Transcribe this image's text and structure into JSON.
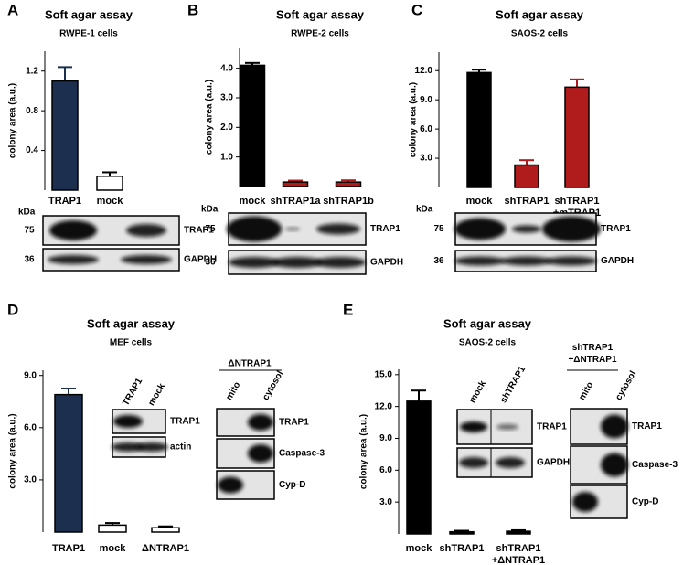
{
  "chart_data": [
    {
      "type": "bar",
      "panel": "A",
      "title": "Soft agar assay",
      "subtitle": "RWPE-1 cells",
      "ylabel": "colony area (a.u.)",
      "categories": [
        "TRAP1",
        "mock"
      ],
      "values": [
        1.1,
        0.14
      ],
      "errors": [
        0.14,
        0.04
      ],
      "colors": [
        "#1c2f4f",
        "#ffffff"
      ],
      "ylim": [
        0,
        1.4
      ],
      "yticks": [
        0.4,
        0.8,
        1.2
      ]
    },
    {
      "type": "bar",
      "panel": "B",
      "title": "Soft agar assay",
      "subtitle": "RWPE-2 cells",
      "ylabel": "colony area (a.u.)",
      "categories": [
        "mock",
        "shTRAP1a",
        "shTRAP1b"
      ],
      "values": [
        4.1,
        0.15,
        0.15
      ],
      "errors": [
        0.08,
        0.05,
        0.06
      ],
      "colors": [
        "#000000",
        "#b01c1c",
        "#b01c1c"
      ],
      "ylim": [
        0,
        4.7
      ],
      "yticks": [
        {
          "value": 1,
          "label": "1.0"
        },
        {
          "value": 2,
          "label": "2.0"
        },
        {
          "value": 3,
          "label": "3.0"
        },
        {
          "value": 4,
          "label": "4.0"
        }
      ]
    },
    {
      "type": "bar",
      "panel": "C",
      "title": "Soft agar assay",
      "subtitle": "SAOS-2 cells",
      "ylabel": "colony area (a.u.)",
      "categories": [
        "mock",
        "shTRAP1",
        "shTRAP1\n+mTRAP1"
      ],
      "values": [
        11.8,
        2.3,
        10.3
      ],
      "errors": [
        0.3,
        0.5,
        0.8
      ],
      "colors": [
        "#000000",
        "#b01c1c",
        "#b01c1c"
      ],
      "ylim": [
        0,
        13.9
      ],
      "yticks": [
        {
          "value": 3,
          "label": "3.0"
        },
        {
          "value": 6,
          "label": "6.0"
        },
        {
          "value": 9,
          "label": "9.0"
        },
        {
          "value": 12,
          "label": "12.0"
        }
      ]
    },
    {
      "type": "bar",
      "panel": "D",
      "title": "Soft agar assay",
      "subtitle": "MEF cells",
      "ylabel": "colony area (a.u.)",
      "categories": [
        "TRAP1",
        "mock",
        "ΔNTRAP1"
      ],
      "values": [
        7.9,
        0.4,
        0.25
      ],
      "errors": [
        0.35,
        0.12,
        0.08
      ],
      "colors": [
        "#1c2f4f",
        "#ffffff",
        "#ffffff"
      ],
      "ylim": [
        0,
        9.3
      ],
      "yticks": [
        {
          "value": 3,
          "label": "3.0"
        },
        {
          "value": 6,
          "label": "6.0"
        },
        {
          "value": 9,
          "label": "9.0"
        }
      ]
    },
    {
      "type": "bar",
      "panel": "E",
      "title": "Soft agar assay",
      "subtitle": "SAOS-2 cells",
      "ylabel": "colony area (a.u.)",
      "categories": [
        "mock",
        "shTRAP1",
        "shTRAP1\n+ΔNTRAP1"
      ],
      "values": [
        12.5,
        0.2,
        0.25
      ],
      "errors": [
        1.0,
        0.1,
        0.1
      ],
      "colors": [
        "#000000",
        "#000000",
        "#000000"
      ],
      "ylim": [
        0,
        15.5
      ],
      "yticks": [
        {
          "value": 3,
          "label": "3.0"
        },
        {
          "value": 6,
          "label": "6.0"
        },
        {
          "value": 9,
          "label": "9.0"
        },
        {
          "value": 12,
          "label": "12.0"
        },
        {
          "value": 15,
          "label": "15.0"
        }
      ]
    }
  ],
  "blots": [
    [
      {
        "kda": "kDa",
        "rows": [
          {
            "marker": "75",
            "label": "TRAP1"
          },
          {
            "marker": "36",
            "label": "GAPDH"
          }
        ]
      }
    ],
    [
      {
        "kda": "kDa",
        "rows": [
          {
            "marker": "75",
            "label": "TRAP1"
          },
          {
            "marker": "36",
            "label": "GAPDH"
          }
        ]
      }
    ],
    [
      {
        "kda": "kDa",
        "rows": [
          {
            "marker": "75",
            "label": "TRAP1"
          },
          {
            "marker": "36",
            "label": "GAPDH"
          }
        ]
      }
    ],
    [
      {
        "lanes": [
          "TRAP1",
          "mock"
        ],
        "rows": [
          {
            "label": "TRAP1"
          },
          {
            "label": "actin"
          }
        ]
      },
      {
        "header": "ΔNTRAP1",
        "lanes": [
          "mito",
          "cytosol"
        ],
        "rows": [
          {
            "label": "TRAP1"
          },
          {
            "label": "Caspase-3"
          },
          {
            "label": "Cyp-D"
          }
        ]
      }
    ],
    [
      {
        "lanes": [
          "mock",
          "shTRAP1"
        ],
        "rows": [
          {
            "label": "TRAP1"
          },
          {
            "label": "GAPDH"
          }
        ]
      },
      {
        "header": "shTRAP1\n+ΔNTRAP1",
        "lanes": [
          "mito",
          "cytosol"
        ],
        "rows": [
          {
            "label": "TRAP1"
          },
          {
            "label": "Caspase-3"
          },
          {
            "label": "Cyp-D"
          }
        ]
      }
    ]
  ]
}
